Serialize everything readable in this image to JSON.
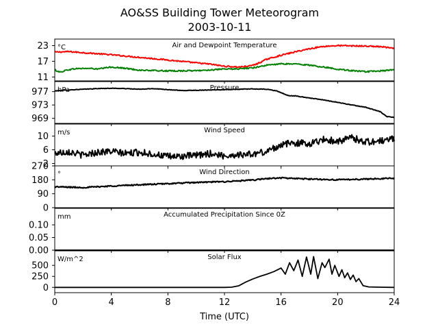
{
  "chart_data": {
    "type": "line",
    "title": "AO&SS Building Tower Meteorogram",
    "subtitle": "2003-10-11",
    "xlabel": "Time (UTC)",
    "xlim": [
      0,
      24
    ],
    "xticks": [
      "0",
      "4",
      "8",
      "12",
      "16",
      "20",
      "24"
    ],
    "panels": [
      {
        "id": "temp",
        "title": "Air and Dewpoint Temperature",
        "unit": "°C",
        "ylim": [
          9.5,
          25.5
        ],
        "yticks": [
          {
            "v": 11,
            "label": "11"
          },
          {
            "v": 17,
            "label": "17"
          },
          {
            "v": 23,
            "label": "23"
          }
        ],
        "noise": 0.25,
        "series": [
          {
            "color": "#ff0000",
            "width": 2,
            "points": [
              [
                0,
                20.5
              ],
              [
                1,
                20.7
              ],
              [
                2,
                20.3
              ],
              [
                3,
                19.9
              ],
              [
                4,
                19.5
              ],
              [
                6,
                18.5
              ],
              [
                8,
                17.5
              ],
              [
                10,
                16.4
              ],
              [
                11,
                15.9
              ],
              [
                12,
                15.1
              ],
              [
                13,
                14.8
              ],
              [
                13.8,
                15.2
              ],
              [
                14.3,
                16.0
              ],
              [
                15,
                17.8
              ],
              [
                16,
                19.3
              ],
              [
                17,
                20.6
              ],
              [
                18,
                21.8
              ],
              [
                19,
                22.7
              ],
              [
                20,
                23.0
              ],
              [
                21,
                22.9
              ],
              [
                22,
                22.8
              ],
              [
                23,
                22.6
              ],
              [
                23.5,
                22.3
              ],
              [
                24,
                21.8
              ]
            ]
          },
          {
            "color": "#008000",
            "width": 2,
            "points": [
              [
                0,
                13.7
              ],
              [
                0.4,
                12.8
              ],
              [
                0.8,
                13.6
              ],
              [
                1.5,
                14.2
              ],
              [
                2.5,
                14.3
              ],
              [
                3,
                14.0
              ],
              [
                4,
                14.8
              ],
              [
                5,
                14.3
              ],
              [
                6,
                13.6
              ],
              [
                8,
                13.3
              ],
              [
                10,
                13.4
              ],
              [
                12,
                14.0
              ],
              [
                13,
                14.1
              ],
              [
                14,
                14.5
              ],
              [
                15,
                15.5
              ],
              [
                16,
                16.0
              ],
              [
                17,
                16.0
              ],
              [
                18,
                15.5
              ],
              [
                19,
                14.8
              ],
              [
                20,
                14.0
              ],
              [
                21,
                13.4
              ],
              [
                22,
                13.0
              ],
              [
                23,
                13.3
              ],
              [
                24,
                13.7
              ]
            ]
          }
        ]
      },
      {
        "id": "pressure",
        "title": "Pressure",
        "unit": "hPa",
        "ylim": [
          967.5,
          980
        ],
        "yticks": [
          {
            "v": 969,
            "label": "969"
          },
          {
            "v": 973,
            "label": "973"
          },
          {
            "v": 977,
            "label": "977"
          }
        ],
        "noise": 0.08,
        "series": [
          {
            "color": "#000000",
            "width": 2,
            "points": [
              [
                0,
                977.2
              ],
              [
                1,
                977.5
              ],
              [
                2,
                977.7
              ],
              [
                3,
                977.9
              ],
              [
                4,
                978.0
              ],
              [
                5,
                977.9
              ],
              [
                6,
                977.7
              ],
              [
                7,
                977.9
              ],
              [
                8,
                977.6
              ],
              [
                9,
                977.3
              ],
              [
                10,
                977.4
              ],
              [
                11,
                977.5
              ],
              [
                12,
                977.6
              ],
              [
                13,
                977.7
              ],
              [
                14,
                977.8
              ],
              [
                15,
                977.7
              ],
              [
                15.7,
                977.2
              ],
              [
                16.5,
                975.8
              ],
              [
                17,
                975.7
              ],
              [
                18,
                975.1
              ],
              [
                19,
                974.5
              ],
              [
                20,
                973.8
              ],
              [
                21,
                973.0
              ],
              [
                22,
                972.3
              ],
              [
                23,
                971.0
              ],
              [
                23.5,
                969.5
              ],
              [
                24,
                969.3
              ]
            ]
          }
        ]
      },
      {
        "id": "windspeed",
        "title": "Wind Speed",
        "unit": "m/s",
        "ylim": [
          1.3,
          13.5
        ],
        "yticks": [
          {
            "v": 2,
            "label": "2"
          },
          {
            "v": 6,
            "label": "6"
          },
          {
            "v": 10,
            "label": "10"
          }
        ],
        "noise": 1.0,
        "series": [
          {
            "color": "#000000",
            "width": 2,
            "points": [
              [
                0,
                5.0
              ],
              [
                1,
                5.5
              ],
              [
                2,
                4.4
              ],
              [
                3,
                5.3
              ],
              [
                4,
                5.5
              ],
              [
                5,
                4.9
              ],
              [
                6,
                5.3
              ],
              [
                7,
                4.7
              ],
              [
                8,
                4.0
              ],
              [
                9,
                4.1
              ],
              [
                10,
                4.3
              ],
              [
                11,
                4.9
              ],
              [
                12,
                4.2
              ],
              [
                13,
                4.6
              ],
              [
                14,
                4.7
              ],
              [
                15,
                5.5
              ],
              [
                15.5,
                6.5
              ],
              [
                16,
                7.5
              ],
              [
                17,
                8.0
              ],
              [
                18,
                7.8
              ],
              [
                19,
                9.0
              ],
              [
                20,
                8.5
              ],
              [
                21,
                9.5
              ],
              [
                22,
                8.3
              ],
              [
                23,
                8.5
              ],
              [
                24,
                9.3
              ]
            ]
          }
        ]
      },
      {
        "id": "winddir",
        "title": "Wind Direction",
        "unit": "°",
        "ylim": [
          0,
          270
        ],
        "yticks": [
          {
            "v": 0,
            "label": "0"
          },
          {
            "v": 90,
            "label": "90"
          },
          {
            "v": 180,
            "label": "180"
          },
          {
            "v": 270,
            "label": "270"
          }
        ],
        "noise": 4,
        "series": [
          {
            "color": "#000000",
            "width": 2.2,
            "points": [
              [
                0,
                135
              ],
              [
                2,
                130
              ],
              [
                4,
                140
              ],
              [
                6,
                148
              ],
              [
                8,
                155
              ],
              [
                10,
                163
              ],
              [
                12,
                168
              ],
              [
                14,
                178
              ],
              [
                15,
                188
              ],
              [
                16,
                192
              ],
              [
                18,
                185
              ],
              [
                20,
                180
              ],
              [
                22,
                185
              ],
              [
                24,
                190
              ]
            ]
          }
        ]
      },
      {
        "id": "precip",
        "title": "Accumulated Precipitation Since 0Z",
        "unit": "mm",
        "ylim": [
          0,
          0.165
        ],
        "yticks": [
          {
            "v": 0,
            "label": "0.00"
          },
          {
            "v": 0.05,
            "label": "0.05"
          },
          {
            "v": 0.1,
            "label": "0.10"
          }
        ],
        "noise": 0,
        "series": [
          {
            "color": "#000000",
            "width": 2,
            "points": [
              [
                0,
                0
              ],
              [
                24,
                0
              ]
            ]
          }
        ]
      },
      {
        "id": "solar",
        "title": "Solar Flux",
        "unit": "W/m^2",
        "ylim": [
          -120,
          830
        ],
        "yticks": [
          {
            "v": 0,
            "label": "0"
          },
          {
            "v": 250,
            "label": "250"
          },
          {
            "v": 500,
            "label": "500"
          }
        ],
        "noise": 0,
        "series": [
          {
            "color": "#000000",
            "width": 1.8,
            "points": [
              [
                0,
                0
              ],
              [
                12,
                0
              ],
              [
                12.5,
                5
              ],
              [
                13,
                35
              ],
              [
                13.5,
                120
              ],
              [
                14,
                190
              ],
              [
                14.5,
                250
              ],
              [
                15,
                300
              ],
              [
                15.5,
                360
              ],
              [
                16,
                440
              ],
              [
                16.3,
                300
              ],
              [
                16.6,
                560
              ],
              [
                16.9,
                380
              ],
              [
                17.2,
                620
              ],
              [
                17.5,
                250
              ],
              [
                17.8,
                690
              ],
              [
                18.1,
                300
              ],
              [
                18.3,
                700
              ],
              [
                18.6,
                200
              ],
              [
                18.9,
                560
              ],
              [
                19.1,
                450
              ],
              [
                19.4,
                640
              ],
              [
                19.6,
                300
              ],
              [
                19.8,
                500
              ],
              [
                20.1,
                250
              ],
              [
                20.3,
                400
              ],
              [
                20.5,
                220
              ],
              [
                20.7,
                330
              ],
              [
                20.9,
                180
              ],
              [
                21.1,
                280
              ],
              [
                21.3,
                130
              ],
              [
                21.5,
                200
              ],
              [
                21.8,
                40
              ],
              [
                22.2,
                10
              ],
              [
                23,
                5
              ],
              [
                24,
                0
              ]
            ]
          }
        ]
      }
    ]
  }
}
